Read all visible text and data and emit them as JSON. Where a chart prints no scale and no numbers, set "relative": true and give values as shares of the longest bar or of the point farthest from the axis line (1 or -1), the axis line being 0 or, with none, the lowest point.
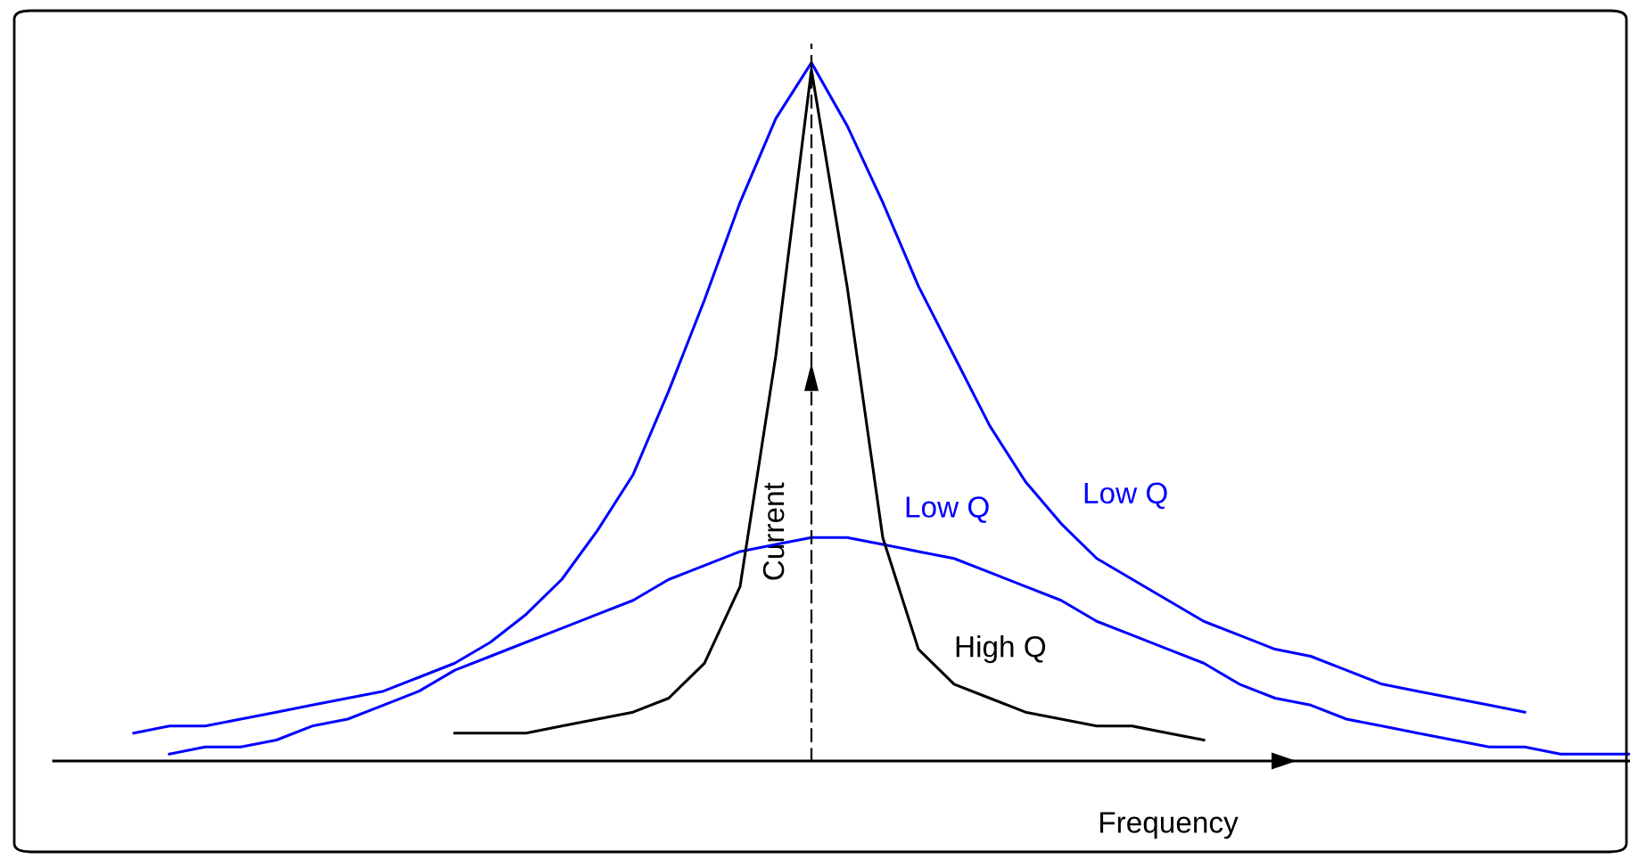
{
  "chart_data": {
    "type": "line",
    "relative": true,
    "xlabel": "Frequency",
    "ylabel": "Current",
    "categories": [
      null,
      null,
      null,
      null,
      null,
      null,
      null,
      null,
      null,
      null,
      null,
      null,
      null,
      null,
      null,
      null,
      null,
      null,
      null,
      null,
      null,
      null,
      null,
      null,
      null,
      null,
      null,
      null,
      null,
      null,
      null,
      null,
      null,
      null,
      null,
      null,
      null,
      null,
      null,
      null,
      null,
      null,
      null,
      null,
      null
    ],
    "series": [
      {
        "name": "Low Q",
        "color": "#0000ff",
        "values": [
          null,
          null,
          0.04,
          0.05,
          0.05,
          0.06,
          0.07,
          0.08,
          0.09,
          0.1,
          0.12,
          0.14,
          0.17,
          0.21,
          0.26,
          0.33,
          0.41,
          0.53,
          0.66,
          0.8,
          0.92,
          1,
          0.91,
          0.8,
          0.68,
          0.58,
          0.48,
          0.4,
          0.34,
          0.29,
          0.26,
          0.23,
          0.2,
          0.18,
          0.16,
          0.15,
          0.13,
          0.11,
          0.1,
          0.09,
          0.08,
          0.07,
          null,
          null,
          null
        ]
      },
      {
        "name": "Low Q",
        "color": "#0000ff",
        "values": [
          null,
          null,
          null,
          0.01,
          0.02,
          0.02,
          0.03,
          0.05,
          0.06,
          0.08,
          0.1,
          0.13,
          0.15,
          0.17,
          0.19,
          0.21,
          0.23,
          0.26,
          0.28,
          0.3,
          0.31,
          0.32,
          0.32,
          0.31,
          0.3,
          0.29,
          0.27,
          0.25,
          0.23,
          0.2,
          0.18,
          0.16,
          0.14,
          0.11,
          0.09,
          0.08,
          0.06,
          0.05,
          0.04,
          0.03,
          0.02,
          0.02,
          0.01,
          0.01,
          0.01
        ]
      },
      {
        "name": "High Q",
        "color": "#000000",
        "values": [
          null,
          null,
          null,
          null,
          null,
          null,
          null,
          null,
          null,
          null,
          null,
          0.04,
          0.04,
          0.04,
          0.05,
          0.06,
          0.07,
          0.09,
          0.14,
          0.25,
          0.58,
          0.99,
          0.68,
          0.32,
          0.16,
          0.11,
          0.09,
          0.07,
          0.06,
          0.05,
          0.05,
          0.04,
          0.03,
          null,
          null,
          null,
          null,
          null,
          null,
          null,
          null,
          null,
          null,
          null,
          null
        ]
      }
    ]
  }
}
